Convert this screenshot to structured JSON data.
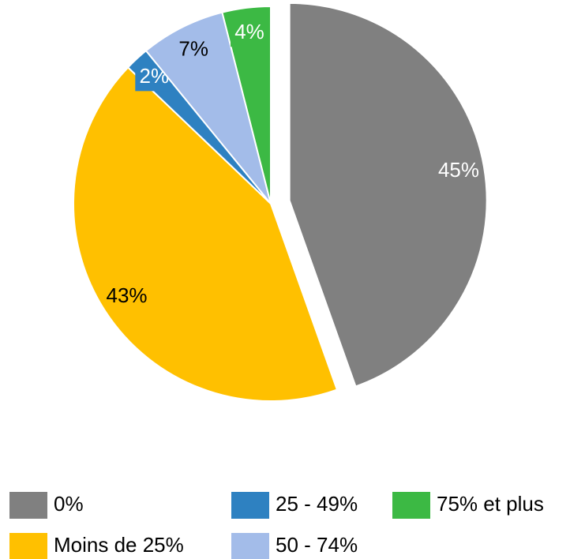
{
  "chart_data": {
    "type": "pie",
    "categories": [
      "0%",
      "Moins de 25%",
      "25 - 49%",
      "50 - 74%",
      "75% et plus"
    ],
    "values": [
      45,
      43,
      2,
      7,
      4
    ],
    "value_labels": [
      "45%",
      "43%",
      "2%",
      "7%",
      "4%"
    ],
    "colors": [
      "#808080",
      "#ffc000",
      "#2e81c1",
      "#a3bce9",
      "#3cb944"
    ],
    "exploded": [
      0
    ]
  }
}
